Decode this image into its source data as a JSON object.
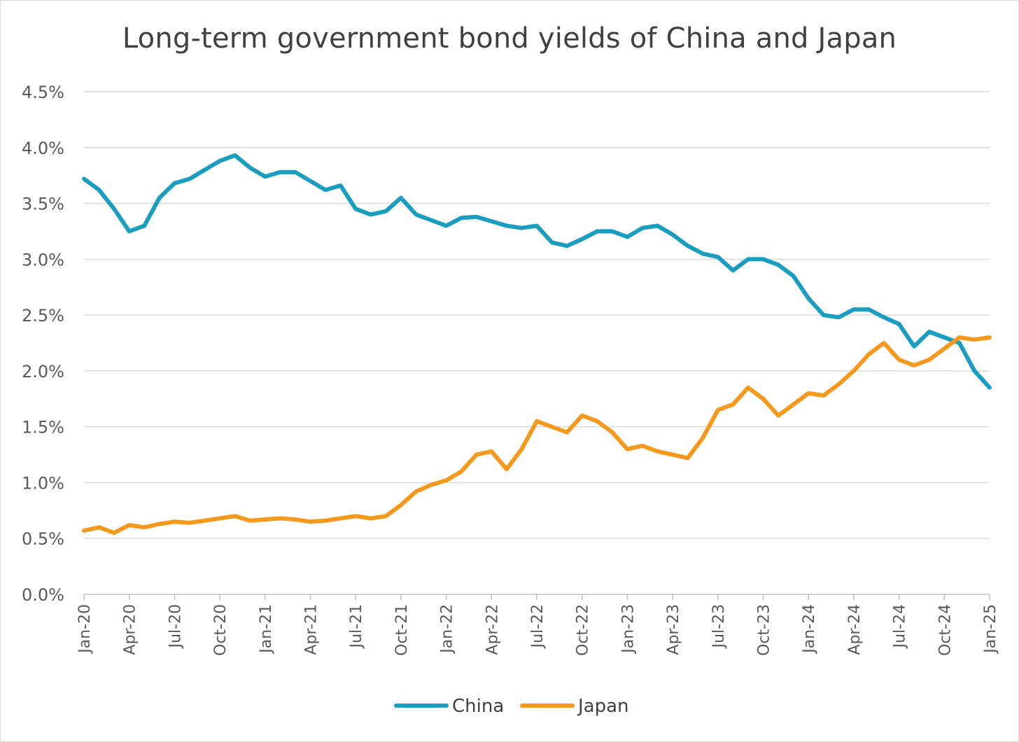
{
  "chart_data": {
    "type": "line",
    "title": "Long-term government bond yields of China and Japan",
    "xlabel": "",
    "ylabel": "",
    "ylim": [
      0,
      4.5
    ],
    "y_ticks": [
      "0.0%",
      "0.5%",
      "1.0%",
      "1.5%",
      "2.0%",
      "2.5%",
      "3.0%",
      "3.5%",
      "4.0%",
      "4.5%"
    ],
    "x_ticks": [
      "Jan-20",
      "Apr-20",
      "Jul-20",
      "Oct-20",
      "Jan-21",
      "Apr-21",
      "Jul-21",
      "Oct-21",
      "Jan-22",
      "Apr-22",
      "Jul-22",
      "Oct-22",
      "Jan-23",
      "Apr-23",
      "Jul-23",
      "Oct-23",
      "Jan-24",
      "Apr-24",
      "Jul-24",
      "Oct-24",
      "Jan-25"
    ],
    "grid": "horizontal",
    "legend_position": "bottom",
    "series": [
      {
        "name": "China",
        "color": "#1a9dbf",
        "x": [
          "2020-01",
          "2020-02",
          "2020-03",
          "2020-04",
          "2020-05",
          "2020-06",
          "2020-07",
          "2020-08",
          "2020-09",
          "2020-10",
          "2020-11",
          "2020-12",
          "2021-01",
          "2021-02",
          "2021-03",
          "2021-04",
          "2021-05",
          "2021-06",
          "2021-07",
          "2021-08",
          "2021-09",
          "2021-10",
          "2021-11",
          "2021-12",
          "2022-01",
          "2022-02",
          "2022-03",
          "2022-04",
          "2022-05",
          "2022-06",
          "2022-07",
          "2022-08",
          "2022-09",
          "2022-10",
          "2022-11",
          "2022-12",
          "2023-01",
          "2023-02",
          "2023-03",
          "2023-04",
          "2023-05",
          "2023-06",
          "2023-07",
          "2023-08",
          "2023-09",
          "2023-10",
          "2023-11",
          "2023-12",
          "2024-01",
          "2024-02",
          "2024-03",
          "2024-04",
          "2024-05",
          "2024-06",
          "2024-07",
          "2024-08",
          "2024-09",
          "2024-10",
          "2024-11",
          "2024-12",
          "2025-01"
        ],
        "values": [
          3.72,
          3.62,
          3.45,
          3.25,
          3.3,
          3.55,
          3.68,
          3.72,
          3.8,
          3.88,
          3.93,
          3.82,
          3.74,
          3.78,
          3.78,
          3.7,
          3.62,
          3.66,
          3.45,
          3.4,
          3.43,
          3.55,
          3.4,
          3.35,
          3.3,
          3.37,
          3.38,
          3.34,
          3.3,
          3.28,
          3.3,
          3.15,
          3.12,
          3.18,
          3.25,
          3.25,
          3.2,
          3.28,
          3.3,
          3.22,
          3.12,
          3.05,
          3.02,
          2.9,
          3.0,
          3.0,
          2.95,
          2.85,
          2.65,
          2.5,
          2.48,
          2.55,
          2.55,
          2.48,
          2.42,
          2.22,
          2.35,
          2.3,
          2.25,
          2.0,
          1.85
        ]
      },
      {
        "name": "Japan",
        "color": "#f39a1e",
        "x": [
          "2020-01",
          "2020-02",
          "2020-03",
          "2020-04",
          "2020-05",
          "2020-06",
          "2020-07",
          "2020-08",
          "2020-09",
          "2020-10",
          "2020-11",
          "2020-12",
          "2021-01",
          "2021-02",
          "2021-03",
          "2021-04",
          "2021-05",
          "2021-06",
          "2021-07",
          "2021-08",
          "2021-09",
          "2021-10",
          "2021-11",
          "2021-12",
          "2022-01",
          "2022-02",
          "2022-03",
          "2022-04",
          "2022-05",
          "2022-06",
          "2022-07",
          "2022-08",
          "2022-09",
          "2022-10",
          "2022-11",
          "2022-12",
          "2023-01",
          "2023-02",
          "2023-03",
          "2023-04",
          "2023-05",
          "2023-06",
          "2023-07",
          "2023-08",
          "2023-09",
          "2023-10",
          "2023-11",
          "2023-12",
          "2024-01",
          "2024-02",
          "2024-03",
          "2024-04",
          "2024-05",
          "2024-06",
          "2024-07",
          "2024-08",
          "2024-09",
          "2024-10",
          "2024-11",
          "2024-12",
          "2025-01"
        ],
        "values": [
          0.57,
          0.6,
          0.55,
          0.62,
          0.6,
          0.63,
          0.65,
          0.64,
          0.66,
          0.68,
          0.7,
          0.66,
          0.67,
          0.68,
          0.67,
          0.65,
          0.66,
          0.68,
          0.7,
          0.68,
          0.7,
          0.8,
          0.92,
          0.98,
          1.02,
          1.1,
          1.25,
          1.28,
          1.12,
          1.3,
          1.55,
          1.5,
          1.45,
          1.6,
          1.55,
          1.45,
          1.3,
          1.33,
          1.28,
          1.25,
          1.22,
          1.4,
          1.65,
          1.7,
          1.85,
          1.75,
          1.6,
          1.7,
          1.8,
          1.78,
          1.88,
          2.0,
          2.15,
          2.25,
          2.1,
          2.05,
          2.1,
          2.2,
          2.3,
          2.28,
          2.3
        ]
      }
    ]
  }
}
